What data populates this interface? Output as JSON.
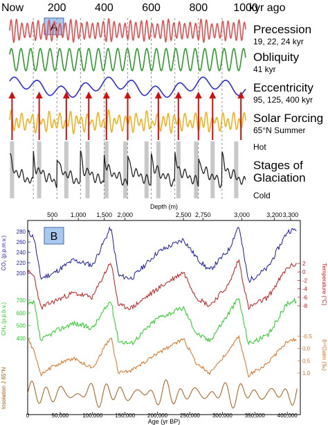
{
  "chart_data": [
    {
      "panel": "A",
      "type": "line",
      "top_axis": {
        "labels": [
          "Now",
          "200",
          "400",
          "600",
          "800",
          "1000"
        ],
        "values": [
          0,
          200,
          400,
          600,
          800,
          1000
        ],
        "unit": "kyr ago"
      },
      "series": [
        {
          "name": "Precession",
          "periods": "19, 22, 24 kyr",
          "color": "#e05050"
        },
        {
          "name": "Obliquity",
          "periods": "41 kyr",
          "color": "#2e9a2e"
        },
        {
          "name": "Eccentricity",
          "periods": "95, 125, 400 kyr",
          "color": "#2b2bd6"
        },
        {
          "name": "Solar Forcing",
          "periods": "65°N Summer",
          "color": "#f0b020"
        },
        {
          "name": "Stages of Glaciation",
          "hot_label": "Hot",
          "cold_label": "Cold",
          "color": "#222222"
        }
      ],
      "forcing_arrows_kyr": [
        10,
        125,
        240,
        335,
        410,
        500,
        630,
        715,
        800,
        860,
        980
      ],
      "interglacial_bands_kyr": [
        10,
        125,
        240,
        330,
        410,
        490,
        580,
        630,
        715,
        790,
        860,
        960
      ]
    },
    {
      "panel": "B",
      "type": "line",
      "top_axis": {
        "title": "Depth (m)",
        "labels": [
          "500",
          "1,000",
          "1,500",
          "2,000",
          "2,500",
          "2,750",
          "3,000",
          "3,200",
          "3,300"
        ],
        "values_yr": [
          38000,
          78000,
          118000,
          150000,
          240000,
          270000,
          330000,
          380000,
          405000
        ]
      },
      "bottom_axis": {
        "title": "Age (yr BP)",
        "labels": [
          "0",
          "50,000",
          "100,000",
          "150,000",
          "200,000",
          "250,000",
          "300,000",
          "350,000",
          "400,000"
        ],
        "values": [
          0,
          50000,
          100000,
          150000,
          200000,
          250000,
          300000,
          350000,
          400000
        ]
      },
      "series": [
        {
          "name": "CO₂ (p.p.m.v.)",
          "color": "#1a1aa0",
          "ticks": [
            "280",
            "260",
            "240",
            "220",
            "200"
          ],
          "tick_values": [
            280,
            260,
            240,
            220,
            200
          ],
          "side": "left",
          "x": [
            0,
            10000,
            20000,
            40000,
            70000,
            100000,
            128000,
            140000,
            160000,
            200000,
            240000,
            260000,
            280000,
            310000,
            325000,
            340000,
            370000,
            400000,
            415000
          ],
          "y": [
            280,
            268,
            190,
            200,
            225,
            215,
            288,
            195,
            190,
            240,
            265,
            230,
            205,
            245,
            292,
            185,
            210,
            280,
            285
          ]
        },
        {
          "name": "Temperature (°C)",
          "color": "#c01818",
          "ticks": [
            "2",
            "0",
            "-2",
            "-4",
            "-6",
            "-8"
          ],
          "tick_values": [
            2,
            0,
            -2,
            -4,
            -6,
            -8
          ],
          "side": "right",
          "x": [
            0,
            10000,
            20000,
            40000,
            70000,
            100000,
            128000,
            140000,
            160000,
            200000,
            240000,
            260000,
            280000,
            310000,
            325000,
            340000,
            370000,
            400000,
            415000
          ],
          "y": [
            0,
            -1,
            -8.5,
            -7,
            -5,
            -6,
            2.5,
            -8,
            -8.5,
            -4,
            0,
            -6,
            -8,
            -3,
            3,
            -8.5,
            -6,
            1,
            2
          ]
        },
        {
          "name": "CH₄ (p.p.b.v.)",
          "color": "#22cc22",
          "ticks": [
            "700",
            "600",
            "500",
            "400"
          ],
          "tick_values": [
            700,
            600,
            500,
            400
          ],
          "side": "left",
          "x": [
            0,
            10000,
            20000,
            40000,
            70000,
            100000,
            128000,
            140000,
            160000,
            200000,
            240000,
            260000,
            280000,
            310000,
            325000,
            340000,
            370000,
            400000,
            415000
          ],
          "y": [
            660,
            680,
            380,
            450,
            520,
            480,
            700,
            380,
            360,
            560,
            640,
            440,
            380,
            600,
            720,
            360,
            420,
            680,
            700
          ]
        },
        {
          "name": "δ¹⁸Oatm (‰)",
          "color": "#d87020",
          "ticks": [
            "-0.5",
            "0.0",
            "0.5",
            "1.0"
          ],
          "tick_values": [
            -0.5,
            0,
            0.5,
            1.0
          ],
          "side": "right",
          "x": [
            0,
            10000,
            20000,
            40000,
            70000,
            100000,
            128000,
            140000,
            160000,
            200000,
            240000,
            260000,
            280000,
            310000,
            325000,
            340000,
            370000,
            400000,
            415000
          ],
          "y": [
            -0.4,
            0.1,
            1.1,
            0.7,
            0.4,
            0.8,
            -0.5,
            1.0,
            0.9,
            0.2,
            -0.4,
            0.6,
            1.0,
            0.1,
            -0.5,
            1.1,
            0.6,
            -0.3,
            -0.4
          ]
        },
        {
          "name": "Insolation J 65°N",
          "color": "#a05a14",
          "side": "left"
        }
      ]
    }
  ]
}
